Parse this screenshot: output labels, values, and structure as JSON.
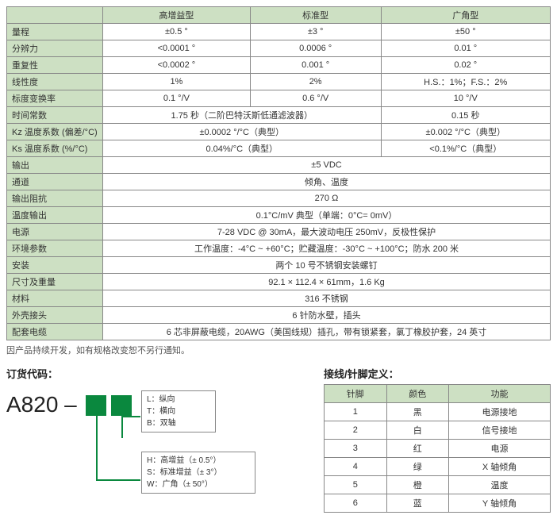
{
  "specTable": {
    "headers": [
      "",
      "高增益型",
      "标准型",
      "广角型"
    ],
    "rows": [
      {
        "label": "量程",
        "c1": "±0.5 °",
        "c2": "±3 °",
        "c3": "±50 °"
      },
      {
        "label": "分辨力",
        "c1": "<0.0001 °",
        "c2": "0.0006 °",
        "c3": "0.01 °"
      },
      {
        "label": "重复性",
        "c1": "<0.0002 °",
        "c2": "0.001 °",
        "c3": "0.02 °"
      },
      {
        "label": "线性度",
        "c1": "1%",
        "c2": "2%",
        "c3": "H.S.：1%；F.S.：2%"
      },
      {
        "label": "标度变换率",
        "c1": "0.1 °/V",
        "c2": "0.6 °/V",
        "c3": "10 °/V"
      },
      {
        "label": "时间常数",
        "c1": "1.75 秒（二阶巴特沃斯低通滤波器）",
        "colspan1": 2,
        "c3": "0.15 秒"
      },
      {
        "label": "Kz 温度系数 (偏差/°C)",
        "c1": "±0.0002 °/°C（典型）",
        "colspan1": 2,
        "c3": "±0.002 °/°C（典型）"
      },
      {
        "label": "Ks 温度系数 (%/°C)",
        "c1": "0.04%/°C（典型）",
        "colspan1": 2,
        "c3": "<0.1%/°C（典型）"
      },
      {
        "label": "输出",
        "c1": "±5 VDC",
        "colspan1": 3
      },
      {
        "label": "通道",
        "c1": "倾角、温度",
        "colspan1": 3
      },
      {
        "label": "输出阻抗",
        "c1": "270 Ω",
        "colspan1": 3
      },
      {
        "label": "温度输出",
        "c1": "0.1°C/mV 典型（单端：0°C= 0mV）",
        "colspan1": 3
      },
      {
        "label": "电源",
        "c1": "7-28 VDC @ 30mA，最大波动电压 250mV，反极性保护",
        "colspan1": 3
      },
      {
        "label": "环境参数",
        "c1": "工作温度：-4°C ~ +60°C；贮藏温度：-30°C ~ +100°C；防水 200 米",
        "colspan1": 3
      },
      {
        "label": "安装",
        "c1": "两个 10 号不锈钢安装螺钉",
        "colspan1": 3
      },
      {
        "label": "尺寸及重量",
        "c1": "92.1 × 112.4 × 61mm，1.6 Kg",
        "colspan1": 3
      },
      {
        "label": "材料",
        "c1": "316 不锈钢",
        "colspan1": 3
      },
      {
        "label": "外壳接头",
        "c1": "6 针防水壁，插头",
        "colspan1": 3
      },
      {
        "label": "配套电缆",
        "c1": "6 芯非屏蔽电缆，20AWG（美国线规）插孔，带有锁紧套，氯丁橡胶护套，24 英寸",
        "colspan1": 3
      }
    ]
  },
  "noteText": "因产品持续开发，如有规格改变恕不另行通知。",
  "orderTitle": "订货代码：",
  "orderCode": "A820 –",
  "legend1": [
    "L：纵向",
    "T：横向",
    "B：双轴"
  ],
  "legend2": [
    "H：高增益（± 0.5°）",
    "S：标准增益（± 3°）",
    "W：广角（± 50°）"
  ],
  "pinTitle": "接线/针脚定义：",
  "pinTable": {
    "headers": [
      "针脚",
      "颜色",
      "功能"
    ],
    "rows": [
      [
        "1",
        "黑",
        "电源接地"
      ],
      [
        "2",
        "白",
        "信号接地"
      ],
      [
        "3",
        "红",
        "电源"
      ],
      [
        "4",
        "绿",
        "X 轴倾角"
      ],
      [
        "5",
        "橙",
        "温度"
      ],
      [
        "6",
        "蓝",
        "Y 轴倾角"
      ]
    ]
  }
}
